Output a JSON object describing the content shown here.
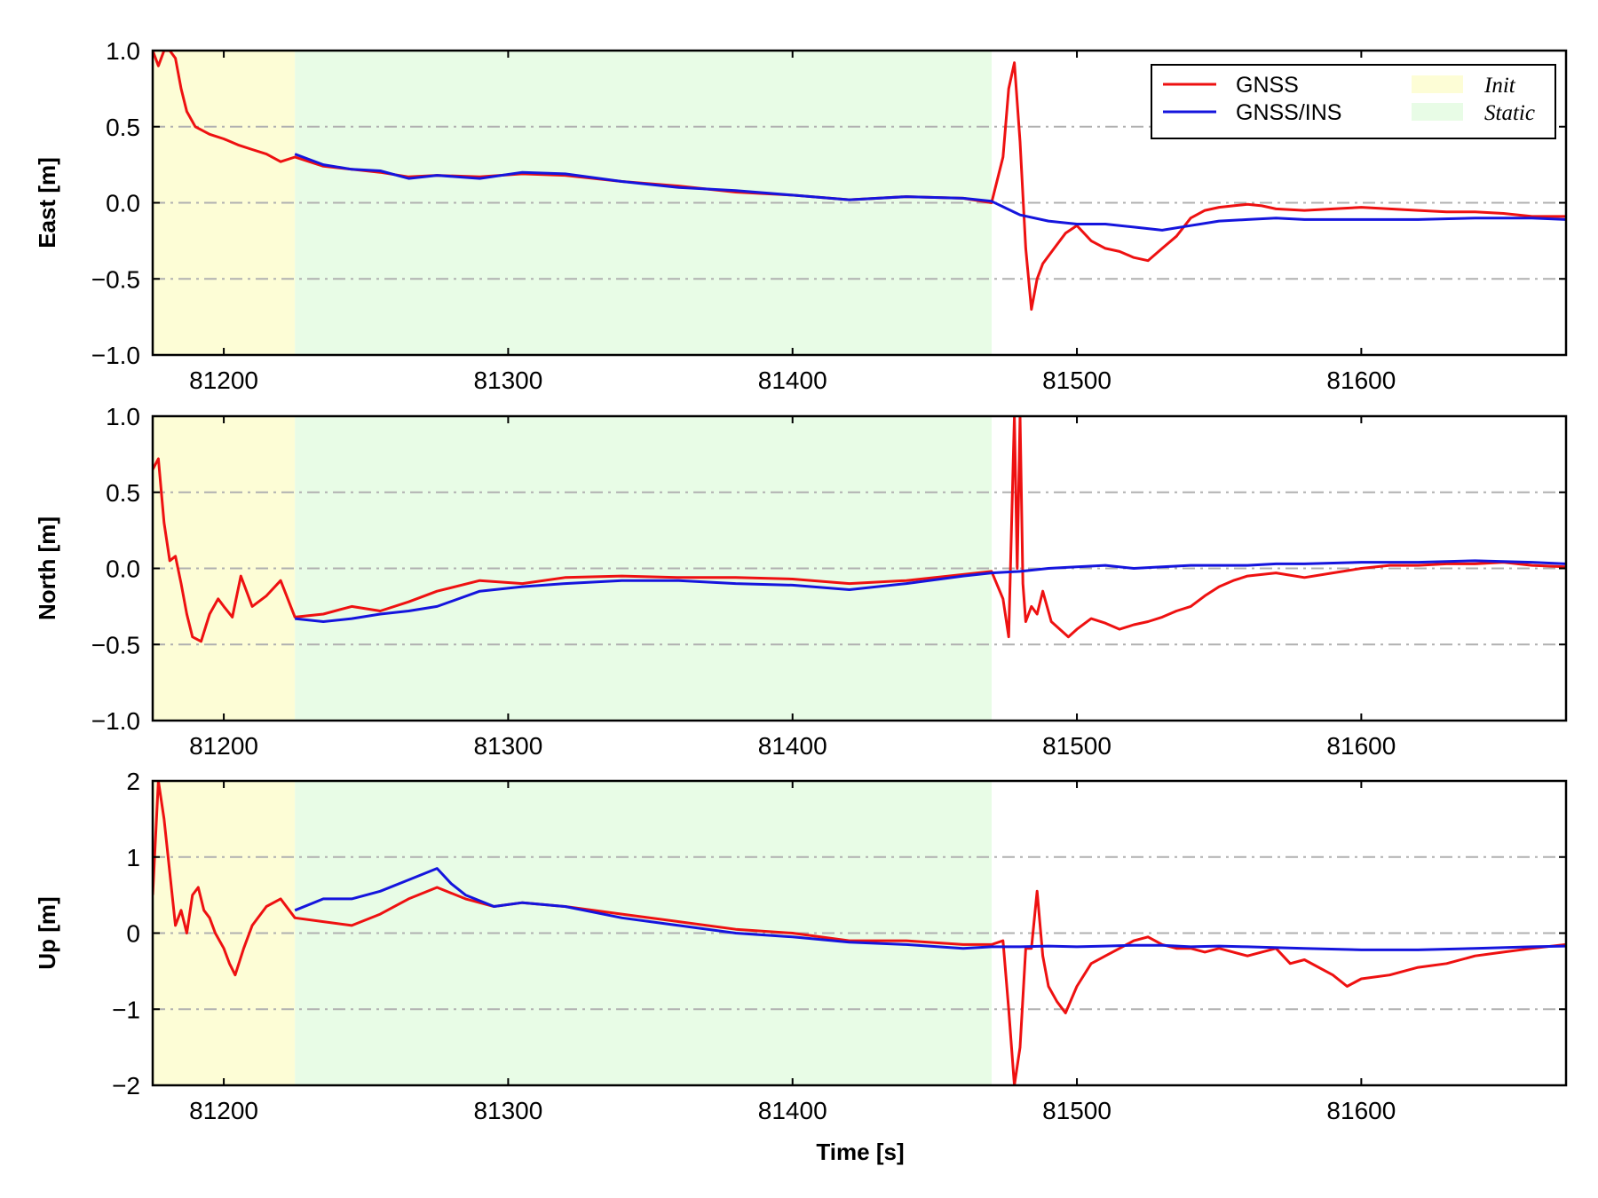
{
  "colors": {
    "gnss": "#ee1111",
    "gnss_ins": "#1515dd",
    "init_band": "#fdfdd6",
    "static_band": "#e8fce6",
    "grid": "#b0b0b0",
    "axes": "#000000"
  },
  "legend": {
    "placement": "top-right of first panel",
    "entries": [
      "GNSS",
      "GNSS/INS",
      "Init",
      "Static"
    ]
  },
  "chart_data": [
    {
      "type": "line",
      "ylabel": "East [m]",
      "xlabel": "",
      "xlim": [
        81175,
        81672
      ],
      "ylim": [
        -1.0,
        1.0
      ],
      "xticks": [
        81200,
        81300,
        81400,
        81500,
        81600
      ],
      "xtick_labels": [
        "81200",
        "81300",
        "81400",
        "81500",
        "81600"
      ],
      "yticks": [
        -1.0,
        -0.5,
        0.0,
        0.5,
        1.0
      ],
      "ytick_labels": [
        "−1.0",
        "−0.5",
        "0.0",
        "0.5",
        "1.0"
      ],
      "grid": "horizontal dash-dot",
      "bands": [
        {
          "name": "Init",
          "x": [
            81175,
            81225
          ]
        },
        {
          "name": "Static",
          "x": [
            81225,
            81470
          ]
        }
      ],
      "series": [
        {
          "name": "GNSS",
          "x": [
            81175,
            81177,
            81179,
            81181,
            81183,
            81185,
            81187,
            81190,
            81195,
            81200,
            81205,
            81210,
            81215,
            81220,
            81225,
            81235,
            81245,
            81255,
            81265,
            81275,
            81290,
            81305,
            81320,
            81340,
            81360,
            81380,
            81400,
            81420,
            81440,
            81460,
            81470,
            81474,
            81476,
            81478,
            81480,
            81482,
            81484,
            81486,
            81488,
            81492,
            81496,
            81500,
            81505,
            81510,
            81515,
            81520,
            81525,
            81530,
            81535,
            81540,
            81545,
            81550,
            81555,
            81560,
            81565,
            81570,
            81580,
            81590,
            81600,
            81610,
            81620,
            81630,
            81640,
            81650,
            81660,
            81672
          ],
          "y": [
            1.0,
            0.9,
            1.0,
            1.0,
            0.95,
            0.75,
            0.6,
            0.5,
            0.45,
            0.42,
            0.38,
            0.35,
            0.32,
            0.27,
            0.3,
            0.24,
            0.22,
            0.2,
            0.17,
            0.18,
            0.17,
            0.19,
            0.18,
            0.14,
            0.11,
            0.07,
            0.05,
            0.02,
            0.04,
            0.03,
            0.0,
            0.3,
            0.75,
            0.92,
            0.4,
            -0.3,
            -0.7,
            -0.5,
            -0.4,
            -0.3,
            -0.2,
            -0.15,
            -0.25,
            -0.3,
            -0.32,
            -0.36,
            -0.38,
            -0.3,
            -0.22,
            -0.1,
            -0.05,
            -0.03,
            -0.02,
            -0.01,
            -0.02,
            -0.04,
            -0.05,
            -0.04,
            -0.03,
            -0.04,
            -0.05,
            -0.06,
            -0.06,
            -0.07,
            -0.09,
            -0.09
          ]
        },
        {
          "name": "GNSS/INS",
          "x": [
            81225,
            81235,
            81245,
            81255,
            81265,
            81275,
            81290,
            81305,
            81320,
            81340,
            81360,
            81380,
            81400,
            81420,
            81440,
            81460,
            81470,
            81480,
            81490,
            81500,
            81510,
            81520,
            81530,
            81540,
            81550,
            81560,
            81570,
            81580,
            81600,
            81620,
            81640,
            81660,
            81672
          ],
          "y": [
            0.32,
            0.25,
            0.22,
            0.21,
            0.16,
            0.18,
            0.16,
            0.2,
            0.19,
            0.14,
            0.1,
            0.08,
            0.05,
            0.02,
            0.04,
            0.03,
            0.01,
            -0.08,
            -0.12,
            -0.14,
            -0.14,
            -0.16,
            -0.18,
            -0.15,
            -0.12,
            -0.11,
            -0.1,
            -0.11,
            -0.11,
            -0.11,
            -0.1,
            -0.1,
            -0.11
          ]
        }
      ]
    },
    {
      "type": "line",
      "ylabel": "North [m]",
      "xlabel": "",
      "xlim": [
        81175,
        81672
      ],
      "ylim": [
        -1.0,
        1.0
      ],
      "xticks": [
        81200,
        81300,
        81400,
        81500,
        81600
      ],
      "xtick_labels": [
        "81200",
        "81300",
        "81400",
        "81500",
        "81600"
      ],
      "yticks": [
        -1.0,
        -0.5,
        0.0,
        0.5,
        1.0
      ],
      "ytick_labels": [
        "−1.0",
        "−0.5",
        "0.0",
        "0.5",
        "1.0"
      ],
      "grid": "horizontal dash-dot",
      "bands": [
        {
          "name": "Init",
          "x": [
            81175,
            81225
          ]
        },
        {
          "name": "Static",
          "x": [
            81225,
            81470
          ]
        }
      ],
      "series": [
        {
          "name": "GNSS",
          "x": [
            81175,
            81177,
            81179,
            81181,
            81183,
            81185,
            81187,
            81189,
            81192,
            81195,
            81198,
            81200,
            81203,
            81206,
            81210,
            81215,
            81220,
            81225,
            81235,
            81245,
            81255,
            81265,
            81275,
            81290,
            81305,
            81320,
            81340,
            81360,
            81380,
            81400,
            81420,
            81440,
            81460,
            81470,
            81474,
            81476,
            81478,
            81479,
            81480,
            81481,
            81482,
            81484,
            81486,
            81488,
            81491,
            81494,
            81497,
            81500,
            81505,
            81510,
            81515,
            81520,
            81525,
            81530,
            81535,
            81540,
            81545,
            81550,
            81555,
            81560,
            81570,
            81580,
            81590,
            81600,
            81610,
            81620,
            81630,
            81640,
            81650,
            81660,
            81672
          ],
          "y": [
            0.65,
            0.72,
            0.3,
            0.05,
            0.08,
            -0.1,
            -0.3,
            -0.45,
            -0.48,
            -0.3,
            -0.2,
            -0.25,
            -0.32,
            -0.05,
            -0.25,
            -0.18,
            -0.08,
            -0.32,
            -0.3,
            -0.25,
            -0.28,
            -0.22,
            -0.15,
            -0.08,
            -0.1,
            -0.06,
            -0.05,
            -0.06,
            -0.06,
            -0.07,
            -0.1,
            -0.08,
            -0.04,
            -0.02,
            -0.2,
            -0.45,
            1.0,
            0.0,
            1.0,
            -0.1,
            -0.35,
            -0.25,
            -0.3,
            -0.15,
            -0.35,
            -0.4,
            -0.45,
            -0.4,
            -0.33,
            -0.36,
            -0.4,
            -0.37,
            -0.35,
            -0.32,
            -0.28,
            -0.25,
            -0.18,
            -0.12,
            -0.08,
            -0.05,
            -0.03,
            -0.06,
            -0.03,
            0.0,
            0.02,
            0.02,
            0.03,
            0.03,
            0.04,
            0.02,
            0.01
          ]
        },
        {
          "name": "GNSS/INS",
          "x": [
            81225,
            81235,
            81245,
            81255,
            81265,
            81275,
            81290,
            81305,
            81320,
            81340,
            81360,
            81380,
            81400,
            81420,
            81440,
            81460,
            81470,
            81480,
            81490,
            81500,
            81510,
            81520,
            81530,
            81540,
            81550,
            81560,
            81570,
            81580,
            81600,
            81620,
            81640,
            81660,
            81672
          ],
          "y": [
            -0.33,
            -0.35,
            -0.33,
            -0.3,
            -0.28,
            -0.25,
            -0.15,
            -0.12,
            -0.1,
            -0.08,
            -0.08,
            -0.1,
            -0.11,
            -0.14,
            -0.1,
            -0.05,
            -0.03,
            -0.02,
            0.0,
            0.01,
            0.02,
            0.0,
            0.01,
            0.02,
            0.02,
            0.02,
            0.03,
            0.03,
            0.04,
            0.04,
            0.05,
            0.04,
            0.03
          ]
        }
      ]
    },
    {
      "type": "line",
      "ylabel": "Up [m]",
      "xlabel": "Time [s]",
      "xlim": [
        81175,
        81672
      ],
      "ylim": [
        -2,
        2
      ],
      "xticks": [
        81200,
        81300,
        81400,
        81500,
        81600
      ],
      "xtick_labels": [
        "81200",
        "81300",
        "81400",
        "81500",
        "81600"
      ],
      "yticks": [
        -2,
        -1,
        0,
        1,
        2
      ],
      "ytick_labels": [
        "−2",
        "−1",
        "0",
        "1",
        "2"
      ],
      "grid": "horizontal dash-dot",
      "bands": [
        {
          "name": "Init",
          "x": [
            81175,
            81225
          ]
        },
        {
          "name": "Static",
          "x": [
            81225,
            81470
          ]
        }
      ],
      "series": [
        {
          "name": "GNSS",
          "x": [
            81175,
            81177,
            81179,
            81181,
            81183,
            81185,
            81187,
            81189,
            81191,
            81193,
            81195,
            81197,
            81200,
            81202,
            81204,
            81207,
            81210,
            81215,
            81220,
            81225,
            81235,
            81245,
            81255,
            81265,
            81275,
            81285,
            81295,
            81305,
            81320,
            81340,
            81360,
            81380,
            81400,
            81420,
            81440,
            81460,
            81470,
            81474,
            81476,
            81478,
            81480,
            81482,
            81484,
            81486,
            81488,
            81490,
            81493,
            81496,
            81500,
            81505,
            81510,
            81515,
            81520,
            81525,
            81530,
            81535,
            81540,
            81545,
            81550,
            81560,
            81570,
            81575,
            81580,
            81590,
            81595,
            81600,
            81610,
            81620,
            81630,
            81640,
            81650,
            81660,
            81672
          ],
          "y": [
            0.5,
            2.0,
            1.5,
            0.8,
            0.1,
            0.3,
            0.0,
            0.5,
            0.6,
            0.3,
            0.2,
            0.0,
            -0.2,
            -0.4,
            -0.55,
            -0.2,
            0.1,
            0.35,
            0.45,
            0.2,
            0.15,
            0.1,
            0.25,
            0.45,
            0.6,
            0.45,
            0.35,
            0.4,
            0.35,
            0.25,
            0.15,
            0.05,
            0.0,
            -0.1,
            -0.1,
            -0.15,
            -0.15,
            -0.1,
            -1.0,
            -2.0,
            -1.5,
            -0.2,
            -0.2,
            0.55,
            -0.3,
            -0.7,
            -0.9,
            -1.05,
            -0.7,
            -0.4,
            -0.3,
            -0.2,
            -0.1,
            -0.05,
            -0.15,
            -0.2,
            -0.2,
            -0.25,
            -0.2,
            -0.3,
            -0.2,
            -0.4,
            -0.35,
            -0.55,
            -0.7,
            -0.6,
            -0.55,
            -0.45,
            -0.4,
            -0.3,
            -0.25,
            -0.2,
            -0.15
          ]
        },
        {
          "name": "GNSS/INS",
          "x": [
            81225,
            81235,
            81245,
            81255,
            81265,
            81275,
            81280,
            81285,
            81295,
            81305,
            81320,
            81340,
            81360,
            81380,
            81400,
            81420,
            81440,
            81460,
            81470,
            81480,
            81490,
            81500,
            81510,
            81520,
            81530,
            81540,
            81550,
            81560,
            81580,
            81600,
            81620,
            81640,
            81660,
            81672
          ],
          "y": [
            0.3,
            0.45,
            0.45,
            0.55,
            0.7,
            0.85,
            0.65,
            0.5,
            0.35,
            0.4,
            0.35,
            0.2,
            0.1,
            0.0,
            -0.05,
            -0.12,
            -0.15,
            -0.2,
            -0.18,
            -0.18,
            -0.17,
            -0.18,
            -0.17,
            -0.16,
            -0.16,
            -0.18,
            -0.17,
            -0.18,
            -0.2,
            -0.22,
            -0.22,
            -0.2,
            -0.18,
            -0.17
          ]
        }
      ]
    }
  ]
}
